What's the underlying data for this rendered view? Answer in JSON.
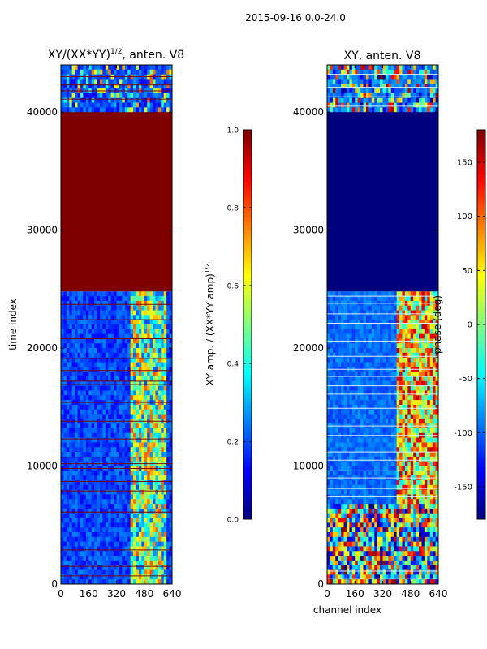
{
  "figure": {
    "title": "2015-09-16 0.0-24.0"
  },
  "colors": {
    "jet": [
      "#00007f",
      "#0000ff",
      "#007fff",
      "#00ffff",
      "#7fff7f",
      "#ffff00",
      "#ff7f00",
      "#ff0000",
      "#7f0000"
    ],
    "frame": "#000000",
    "hline_dark": "#7f0000",
    "hline_light": "#d7f0ff"
  },
  "chart_data": [
    {
      "type": "heatmap",
      "title": "XY/(XX*YY)^1/2, anten. V8",
      "title_main": "XY/(XX*YY)",
      "title_sup": "1/2",
      "title_tail": ", anten. V8",
      "xlabel": "",
      "ylabel": "time index",
      "xlim": [
        0,
        640
      ],
      "ylim": [
        0,
        44000
      ],
      "xticks": [
        "0",
        "160",
        "320",
        "480",
        "640"
      ],
      "xtick_values": [
        0,
        160,
        320,
        480,
        640
      ],
      "yticks": [
        "0",
        "10000",
        "20000",
        "30000",
        "40000"
      ],
      "ytick_values": [
        0,
        10000,
        20000,
        30000,
        40000
      ],
      "colorbar": {
        "label_main": "XY amp. / (XX*YY amp)",
        "label_sup": "1/2",
        "range": [
          0.0,
          1.0
        ],
        "ticks": [
          "0.0",
          "0.2",
          "0.4",
          "0.6",
          "0.8",
          "1.0"
        ],
        "tick_values": [
          0.0,
          0.2,
          0.4,
          0.6,
          0.8,
          1.0
        ]
      },
      "regions": [
        {
          "t_from": 0,
          "t_to": 24800,
          "description": "mostly low values (0.1-0.3), patchy 0.4-0.8 between channels ~400-600"
        },
        {
          "t_from": 24800,
          "t_to": 40000,
          "value": 1.0
        },
        {
          "t_from": 40000,
          "t_to": 44000,
          "description": "mixed low values with bright horizontal stripes"
        }
      ]
    },
    {
      "type": "heatmap",
      "title": "XY, anten. V8",
      "xlabel": "channel index",
      "ylabel": "",
      "xlim": [
        0,
        640
      ],
      "ylim": [
        0,
        44000
      ],
      "xticks": [
        "0",
        "160",
        "320",
        "480",
        "640"
      ],
      "xtick_values": [
        0,
        160,
        320,
        480,
        640
      ],
      "yticks": [
        "0",
        "10000",
        "20000",
        "30000",
        "40000"
      ],
      "ytick_values": [
        0,
        10000,
        20000,
        30000,
        40000
      ],
      "colorbar": {
        "label": "phase (deg)",
        "range": [
          -180,
          180
        ],
        "ticks": [
          "-150",
          "-100",
          "-50",
          "0",
          "50",
          "100",
          "150"
        ],
        "tick_values": [
          -150,
          -100,
          -50,
          0,
          50,
          100,
          150
        ]
      },
      "regions": [
        {
          "t_from": 0,
          "t_to": 7000,
          "description": "strongly varying phase across all channels"
        },
        {
          "t_from": 7000,
          "t_to": 24800,
          "description": "phase ~-120 below channel ~400, varying above"
        },
        {
          "t_from": 24800,
          "t_to": 40000,
          "value": -180
        },
        {
          "t_from": 40000,
          "t_to": 44000,
          "description": "mixed phase with horizontal stripes"
        }
      ]
    }
  ]
}
